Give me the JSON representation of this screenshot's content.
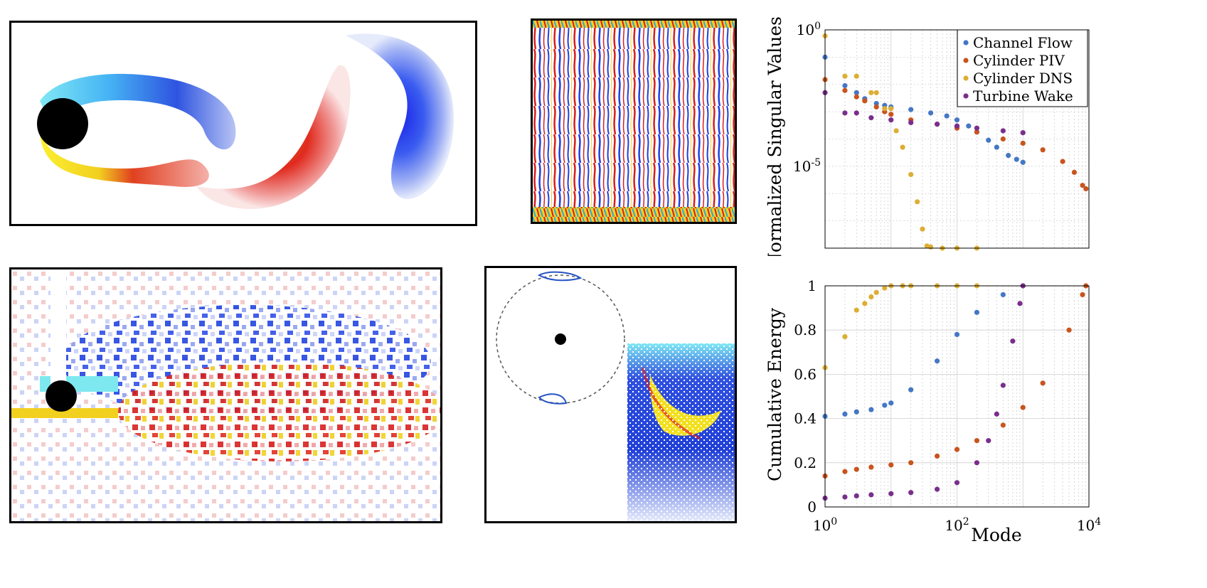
{
  "chart_data": [
    {
      "type": "scatter",
      "xscale": "log",
      "yscale": "log",
      "xlim": [
        1,
        10000
      ],
      "ylim": [
        1e-08,
        1
      ],
      "grid": true,
      "ylabel": "Normalized Singular Values",
      "xlabel": "",
      "yticks": [
        {
          "label_base": "10",
          "label_exp": "-5"
        },
        {
          "label_base": "10",
          "label_exp": "0"
        }
      ],
      "xticks": [
        {
          "label_base": "10",
          "label_exp": "0"
        },
        {
          "label_base": "10",
          "label_exp": "2"
        },
        {
          "label_base": "10",
          "label_exp": "4"
        }
      ],
      "legend_position": "top-right",
      "series": [
        {
          "name": "Channel Flow",
          "color": "#4477c4",
          "x": [
            1,
            2,
            3,
            4,
            6,
            8,
            10,
            20,
            40,
            70,
            100,
            150,
            200,
            300,
            400,
            600,
            800,
            1000
          ],
          "y": [
            0.1,
            0.009,
            0.005,
            0.003,
            0.002,
            0.0017,
            0.0015,
            0.0012,
            0.0009,
            0.0007,
            0.0005,
            0.0003,
            0.00018,
            9e-05,
            5e-05,
            2.5e-05,
            1.8e-05,
            1.4e-05
          ]
        },
        {
          "name": "Cylinder PIV",
          "color": "#c8541e",
          "x": [
            1,
            2,
            3,
            4,
            6,
            8,
            10,
            20,
            50,
            100,
            200,
            500,
            1000,
            2000,
            4000,
            6000,
            8000,
            9000
          ],
          "y": [
            0.015,
            0.006,
            0.0035,
            0.0025,
            0.0015,
            0.001,
            0.0008,
            0.0005,
            0.00035,
            0.00025,
            0.00018,
            0.0001,
            7e-05,
            4e-05,
            1.5e-05,
            6e-06,
            2e-06,
            1.5e-06
          ]
        },
        {
          "name": "Cylinder DNS",
          "color": "#ddae34",
          "x": [
            1,
            2,
            3,
            5,
            6,
            8,
            10,
            12,
            15,
            20,
            25,
            30,
            35,
            40,
            60,
            100,
            200
          ],
          "y": [
            0.6,
            0.02,
            0.02,
            0.005,
            0.005,
            0.0013,
            0.0013,
            0.0002,
            5e-05,
            5e-06,
            5e-07,
            5e-08,
            1.2e-08,
            1.1e-08,
            1e-08,
            1e-08,
            1e-08
          ]
        },
        {
          "name": "Turbine Wake",
          "color": "#7a2e8c",
          "x": [
            1,
            2,
            3,
            5,
            10,
            20,
            50,
            100,
            200,
            500,
            1000
          ],
          "y": [
            0.005,
            0.0009,
            0.0009,
            0.0006,
            0.0005,
            0.0004,
            0.00035,
            0.0003,
            0.00025,
            0.0002,
            0.00017
          ]
        }
      ]
    },
    {
      "type": "scatter",
      "xscale": "log",
      "xlim": [
        1,
        10000
      ],
      "ylim": [
        0,
        1
      ],
      "grid": true,
      "ylabel": "Cumulative Energy",
      "xlabel": "Mode",
      "yticks": [
        "0",
        "0.2",
        "0.4",
        "0.6",
        "0.8",
        "1"
      ],
      "xticks": [
        {
          "label_base": "10",
          "label_exp": "0"
        },
        {
          "label_base": "10",
          "label_exp": "2"
        },
        {
          "label_base": "10",
          "label_exp": "4"
        }
      ],
      "series": [
        {
          "name": "Channel Flow",
          "color": "#4477c4",
          "x": [
            1,
            2,
            3,
            5,
            8,
            10,
            20,
            50,
            100,
            200,
            500,
            1000
          ],
          "y": [
            0.41,
            0.42,
            0.43,
            0.44,
            0.46,
            0.47,
            0.53,
            0.66,
            0.78,
            0.88,
            0.96,
            1.0
          ]
        },
        {
          "name": "Cylinder PIV",
          "color": "#c8541e",
          "x": [
            1,
            2,
            3,
            5,
            10,
            20,
            50,
            100,
            200,
            500,
            1000,
            2000,
            5000,
            8000,
            9000
          ],
          "y": [
            0.14,
            0.16,
            0.17,
            0.18,
            0.19,
            0.2,
            0.23,
            0.26,
            0.3,
            0.37,
            0.45,
            0.56,
            0.8,
            0.96,
            1.0
          ]
        },
        {
          "name": "Cylinder DNS",
          "color": "#ddae34",
          "x": [
            1,
            2,
            3,
            4,
            5,
            6,
            8,
            10,
            15,
            20,
            50,
            100,
            200
          ],
          "y": [
            0.63,
            0.77,
            0.89,
            0.92,
            0.95,
            0.97,
            0.99,
            1.0,
            1.0,
            1.0,
            1.0,
            1.0,
            1.0
          ]
        },
        {
          "name": "Turbine Wake",
          "color": "#7a2e8c",
          "x": [
            1,
            2,
            3,
            5,
            10,
            20,
            50,
            100,
            200,
            300,
            400,
            500,
            700,
            900,
            1000
          ],
          "y": [
            0.04,
            0.045,
            0.05,
            0.055,
            0.06,
            0.065,
            0.08,
            0.11,
            0.2,
            0.3,
            0.42,
            0.55,
            0.75,
            0.92,
            1.0
          ]
        }
      ]
    }
  ],
  "panels": {
    "wake_simulation": {
      "description_color_pos": "#d81e1e",
      "description_color_neg": "#1f3fe0"
    },
    "channel_flow": {},
    "cylinder_piv": {},
    "turbine_wake": {}
  }
}
